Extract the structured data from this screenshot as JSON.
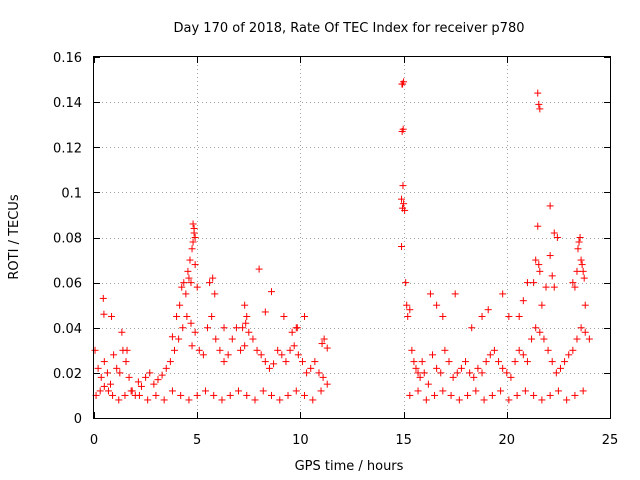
{
  "chart_data": {
    "type": "scatter",
    "title": "Day 170 of 2018, Rate Of TEC Index for receiver p780",
    "xlabel": "GPS time / hours",
    "ylabel": "ROTI / TECUs",
    "xlim": [
      0,
      25
    ],
    "ylim": [
      0,
      0.16
    ],
    "xticks": [
      0,
      5,
      10,
      15,
      20,
      25
    ],
    "xtick_labels": [
      "0",
      "5",
      "10",
      "15",
      "20",
      "25"
    ],
    "yticks": [
      0,
      0.02,
      0.04,
      0.06,
      0.08,
      0.1,
      0.12,
      0.14,
      0.16
    ],
    "ytick_labels": [
      "0",
      "0.02",
      "0.04",
      "0.06",
      "0.08",
      "0.1",
      "0.12",
      "0.14",
      "0.16"
    ],
    "grid": true,
    "marker": "+",
    "color": "#ff0000",
    "series": [
      {
        "name": "ROTI",
        "color": "#ff0000",
        "x": [
          0.05,
          0.2,
          0.35,
          0.5,
          0.65,
          0.8,
          0.95,
          1.1,
          1.25,
          1.4,
          1.55,
          1.7,
          1.85,
          2.0,
          2.15,
          2.3,
          2.5,
          2.7,
          2.9,
          3.1,
          3.3,
          3.5,
          3.7,
          3.9,
          4.1,
          4.3,
          4.5,
          4.7,
          4.9,
          5.1,
          5.3,
          5.5,
          5.7,
          5.9,
          6.1,
          6.3,
          6.5,
          6.7,
          6.9,
          7.1,
          7.3,
          7.5,
          7.7,
          7.9,
          8.1,
          8.3,
          8.5,
          8.7,
          8.9,
          9.1,
          9.3,
          9.5,
          9.7,
          9.9,
          10.1,
          10.3,
          10.5,
          10.7,
          10.9,
          11.1,
          11.3,
          0.1,
          0.3,
          0.5,
          0.7,
          0.9,
          1.2,
          1.5,
          1.8,
          2.2,
          2.6,
          3.0,
          3.4,
          3.8,
          4.2,
          4.6,
          5.0,
          5.4,
          5.8,
          6.2,
          6.6,
          7.0,
          7.4,
          7.8,
          8.2,
          8.6,
          9.0,
          9.4,
          9.8,
          10.2,
          10.6,
          11.0,
          0.45,
          0.48,
          0.85,
          1.35,
          1.6,
          3.8,
          4.0,
          4.15,
          4.25,
          4.35,
          4.45,
          4.55,
          4.6,
          4.65,
          4.7,
          4.75,
          4.8,
          4.85,
          4.9,
          5.0,
          5.6,
          5.75,
          5.85,
          6.3,
          7.2,
          7.3,
          7.35,
          7.4,
          8.0,
          8.3,
          8.6,
          9.2,
          9.6,
          9.8,
          9.85,
          10.2,
          11.05,
          11.15,
          11.3,
          4.75,
          4.8,
          4.85,
          4.9,
          14.9,
          14.95,
          15.0,
          14.92,
          14.98,
          14.93,
          14.97,
          14.9,
          14.95,
          15.0,
          15.05,
          15.1,
          15.15,
          15.2,
          15.3,
          15.4,
          15.5,
          15.6,
          15.7,
          15.8,
          15.9,
          16.0,
          16.2,
          16.4,
          16.6,
          16.8,
          17.0,
          17.2,
          17.4,
          17.6,
          17.8,
          18.0,
          18.2,
          18.4,
          18.6,
          18.8,
          19.0,
          19.2,
          19.4,
          19.6,
          19.8,
          20.0,
          20.2,
          20.4,
          20.6,
          20.8,
          21.0,
          21.2,
          21.4,
          21.6,
          21.8,
          22.0,
          22.2,
          22.4,
          22.6,
          22.8,
          23.0,
          23.2,
          23.4,
          23.6,
          23.8,
          24.0,
          15.3,
          15.7,
          16.1,
          16.5,
          16.9,
          17.3,
          17.7,
          18.1,
          18.5,
          18.9,
          19.3,
          19.7,
          20.1,
          20.5,
          20.9,
          21.3,
          21.7,
          22.1,
          22.5,
          22.9,
          23.3,
          23.7,
          16.3,
          16.6,
          16.9,
          17.5,
          18.3,
          18.8,
          19.1,
          19.8,
          20.1,
          20.6,
          20.8,
          21.0,
          21.3,
          21.4,
          21.5,
          21.55,
          21.6,
          21.7,
          21.9,
          22.1,
          22.2,
          22.3,
          22.45,
          23.2,
          23.3,
          23.4,
          23.45,
          23.5,
          23.55,
          23.6,
          23.65,
          23.7,
          23.75,
          23.8,
          21.5,
          21.55,
          21.6,
          22.1,
          22.3
        ],
        "y": [
          0.03,
          0.022,
          0.018,
          0.025,
          0.02,
          0.015,
          0.028,
          0.022,
          0.02,
          0.03,
          0.025,
          0.018,
          0.012,
          0.01,
          0.016,
          0.014,
          0.018,
          0.02,
          0.015,
          0.017,
          0.019,
          0.022,
          0.025,
          0.03,
          0.035,
          0.04,
          0.045,
          0.042,
          0.038,
          0.03,
          0.028,
          0.04,
          0.045,
          0.035,
          0.03,
          0.025,
          0.028,
          0.035,
          0.04,
          0.03,
          0.032,
          0.038,
          0.035,
          0.03,
          0.028,
          0.025,
          0.022,
          0.024,
          0.03,
          0.028,
          0.025,
          0.03,
          0.032,
          0.028,
          0.025,
          0.02,
          0.022,
          0.025,
          0.02,
          0.018,
          0.015,
          0.01,
          0.012,
          0.014,
          0.012,
          0.01,
          0.008,
          0.01,
          0.012,
          0.01,
          0.008,
          0.01,
          0.008,
          0.012,
          0.01,
          0.008,
          0.01,
          0.012,
          0.01,
          0.008,
          0.01,
          0.012,
          0.01,
          0.008,
          0.012,
          0.01,
          0.008,
          0.01,
          0.012,
          0.01,
          0.008,
          0.012,
          0.053,
          0.046,
          0.045,
          0.038,
          0.03,
          0.036,
          0.045,
          0.05,
          0.058,
          0.06,
          0.055,
          0.065,
          0.062,
          0.07,
          0.06,
          0.075,
          0.086,
          0.082,
          0.068,
          0.058,
          0.06,
          0.062,
          0.055,
          0.04,
          0.04,
          0.05,
          0.042,
          0.045,
          0.066,
          0.047,
          0.056,
          0.045,
          0.038,
          0.04,
          0.04,
          0.045,
          0.033,
          0.035,
          0.031,
          0.032,
          0.078,
          0.084,
          0.08,
          0.076,
          0.148,
          0.149,
          0.148,
          0.128,
          0.127,
          0.103,
          0.097,
          0.093,
          0.095,
          0.092,
          0.06,
          0.05,
          0.045,
          0.048,
          0.03,
          0.025,
          0.022,
          0.02,
          0.018,
          0.025,
          0.02,
          0.015,
          0.028,
          0.022,
          0.02,
          0.03,
          0.025,
          0.018,
          0.02,
          0.022,
          0.025,
          0.02,
          0.018,
          0.022,
          0.02,
          0.025,
          0.028,
          0.03,
          0.025,
          0.022,
          0.02,
          0.018,
          0.025,
          0.03,
          0.028,
          0.025,
          0.035,
          0.04,
          0.038,
          0.035,
          0.03,
          0.025,
          0.02,
          0.022,
          0.025,
          0.028,
          0.03,
          0.035,
          0.04,
          0.038,
          0.035,
          0.01,
          0.012,
          0.008,
          0.01,
          0.012,
          0.01,
          0.008,
          0.01,
          0.012,
          0.008,
          0.01,
          0.012,
          0.008,
          0.01,
          0.012,
          0.01,
          0.008,
          0.01,
          0.012,
          0.008,
          0.01,
          0.012,
          0.055,
          0.05,
          0.045,
          0.055,
          0.04,
          0.045,
          0.048,
          0.055,
          0.045,
          0.045,
          0.052,
          0.06,
          0.06,
          0.07,
          0.085,
          0.068,
          0.065,
          0.05,
          0.058,
          0.072,
          0.063,
          0.058,
          0.08,
          0.06,
          0.058,
          0.065,
          0.075,
          0.078,
          0.08,
          0.07,
          0.068,
          0.065,
          0.062,
          0.05,
          0.144,
          0.139,
          0.137,
          0.094,
          0.082
        ]
      }
    ]
  }
}
